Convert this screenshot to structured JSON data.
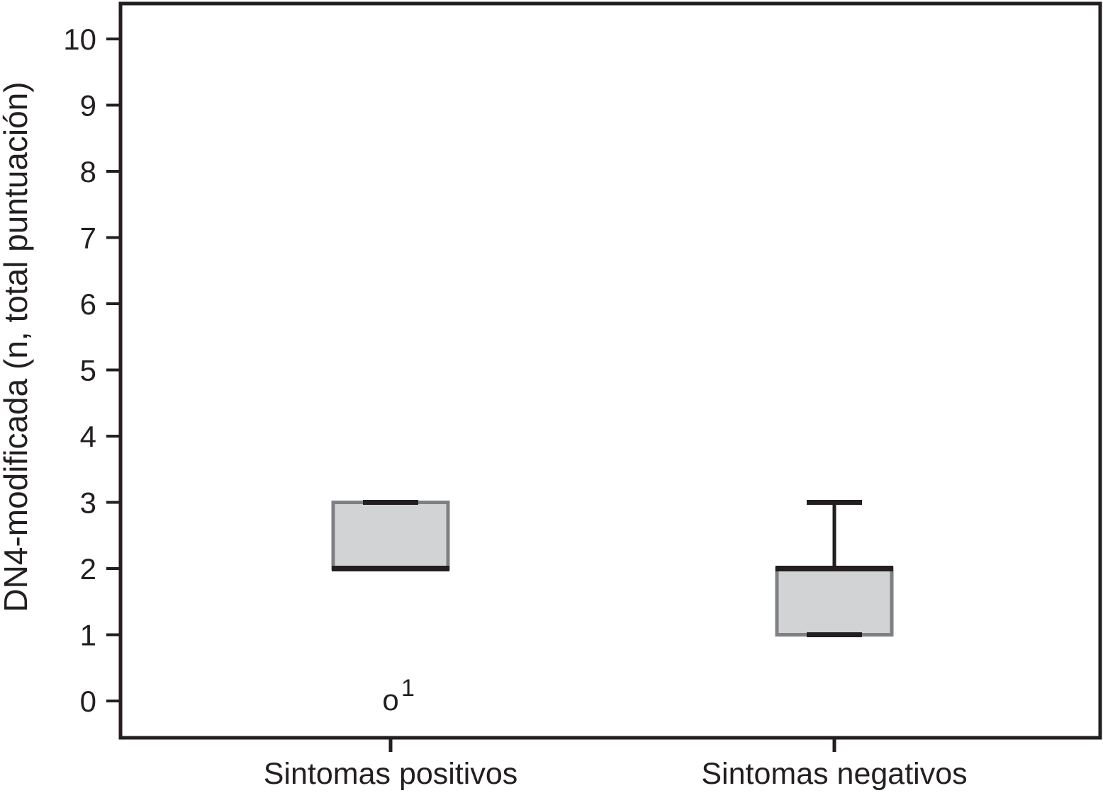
{
  "chart_data": {
    "type": "boxplot",
    "title": "",
    "xlabel": "",
    "ylabel": "DN4-modificada (n, total puntuación)",
    "ylim": [
      0,
      10
    ],
    "y_ticks": [
      0,
      1,
      2,
      3,
      4,
      5,
      6,
      7,
      8,
      9,
      10
    ],
    "grid": false,
    "legend": false,
    "categories": [
      "Sintomas positivos",
      "Sintomas negativos"
    ],
    "series": [
      {
        "category": "Sintomas positivos",
        "q1": 2,
        "median": 2,
        "q3": 3,
        "whisker_low": 2,
        "whisker_high": 3,
        "outliers": [
          {
            "value": 0,
            "marker": "o",
            "label": "1"
          }
        ]
      },
      {
        "category": "Sintomas negativos",
        "q1": 1,
        "median": 2,
        "q3": 2,
        "whisker_low": 1,
        "whisker_high": 3,
        "outliers": []
      }
    ]
  },
  "colors": {
    "line": "#231f20",
    "box_fill": "#d2d3d4",
    "box_border": "#7e8083",
    "background": "#ffffff"
  }
}
